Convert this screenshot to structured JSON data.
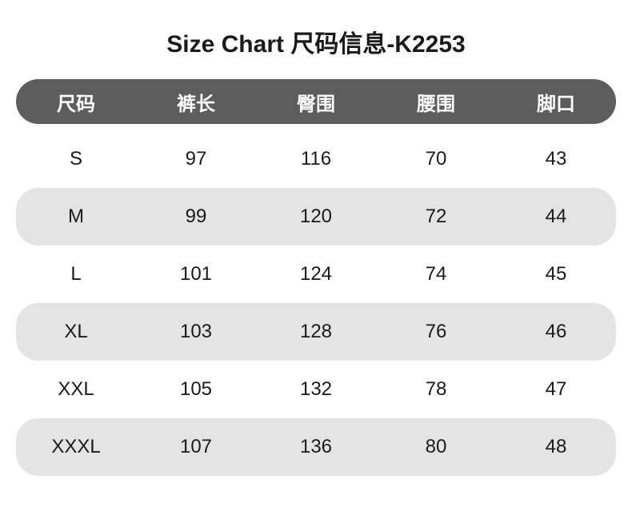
{
  "title": "Size Chart 尺码信息-K2253",
  "table": {
    "columns": [
      "尺码",
      "裤长",
      "臀围",
      "腰围",
      "脚口"
    ],
    "rows": [
      [
        "S",
        "97",
        "116",
        "70",
        "43"
      ],
      [
        "M",
        "99",
        "120",
        "72",
        "44"
      ],
      [
        "L",
        "101",
        "124",
        "74",
        "45"
      ],
      [
        "XL",
        "103",
        "128",
        "76",
        "46"
      ],
      [
        "XXL",
        "105",
        "132",
        "78",
        "47"
      ],
      [
        "XXXL",
        "107",
        "136",
        "80",
        "48"
      ]
    ],
    "header_bg_color": "#5d5d5d",
    "header_text_color": "#ffffff",
    "stripe_bg_color": "#e4e4e4",
    "text_color": "#1a1a1a",
    "title_fontsize": 30,
    "header_fontsize": 24,
    "cell_fontsize": 24,
    "border_radius": 28
  }
}
